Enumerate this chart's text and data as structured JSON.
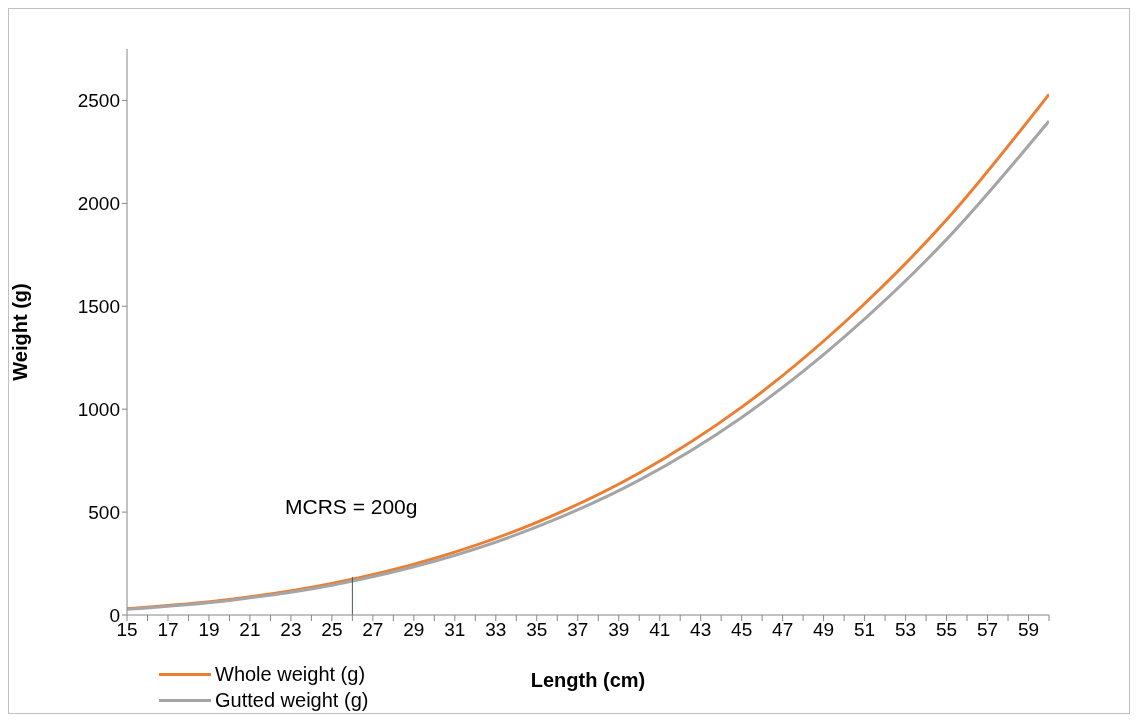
{
  "chart_data": {
    "type": "line",
    "xlabel": "Length (cm)",
    "ylabel": "Weight (g)",
    "xlim": [
      15,
      60
    ],
    "xticks": [
      15,
      {
        "value": 16,
        "label": null
      },
      17,
      {
        "value": 18,
        "label": null
      },
      19,
      {
        "value": 20,
        "label": null
      },
      21,
      {
        "value": 22,
        "label": null
      },
      23,
      {
        "value": 24,
        "label": null
      },
      25,
      {
        "value": 26,
        "label": null
      },
      27,
      {
        "value": 28,
        "label": null
      },
      29,
      {
        "value": 30,
        "label": null
      },
      31,
      {
        "value": 32,
        "label": null
      },
      33,
      {
        "value": 34,
        "label": null
      },
      35,
      {
        "value": 36,
        "label": null
      },
      37,
      {
        "value": 38,
        "label": null
      },
      39,
      {
        "value": 40,
        "label": null
      },
      41,
      {
        "value": 42,
        "label": null
      },
      43,
      {
        "value": 44,
        "label": null
      },
      45,
      {
        "value": 46,
        "label": null
      },
      47,
      {
        "value": 48,
        "label": null
      },
      49,
      {
        "value": 50,
        "label": null
      },
      51,
      {
        "value": 52,
        "label": null
      },
      53,
      {
        "value": 54,
        "label": null
      },
      55,
      {
        "value": 56,
        "label": null
      },
      57,
      {
        "value": 58,
        "label": null
      },
      59,
      {
        "value": 60,
        "label": null
      }
    ],
    "ylim": [
      0,
      2750
    ],
    "yticks": [
      0,
      500,
      1000,
      1500,
      2000,
      2500
    ],
    "x": [
      15,
      20,
      25,
      30,
      35,
      40,
      45,
      50,
      55,
      60
    ],
    "series": [
      {
        "name": "Whole weight (g)",
        "color": "#ed7d31",
        "values": [
          30,
          75,
          153,
          275,
          450,
          690,
          1010,
          1420,
          1920,
          2530
        ]
      },
      {
        "name": "Gutted weight (g)",
        "color": "#a5a5a5",
        "values": [
          28,
          71,
          145,
          261,
          428,
          655,
          960,
          1350,
          1825,
          2400
        ]
      },
      {
        "color": "#44546a",
        "x": [
          26,
          26
        ],
        "values": [
          0,
          185
        ]
      }
    ],
    "annotations": [
      "MCRS = 200g"
    ],
    "grid": false,
    "legend": "bottom left",
    "marker": "none",
    "line_style": "solid"
  }
}
